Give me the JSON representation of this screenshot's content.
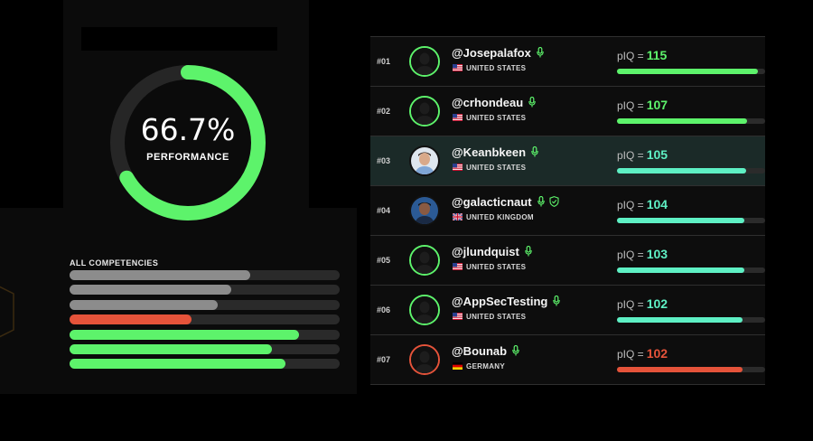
{
  "performance": {
    "value_text": "66.7%",
    "value_fraction": 0.667,
    "label": "PERFORMANCE",
    "ring_color": "#5df36b",
    "track_color": "#262626"
  },
  "competencies": {
    "title": "ALL COMPETENCIES",
    "bars": [
      {
        "level": 0.67,
        "color": "#8c8c8c"
      },
      {
        "level": 0.6,
        "color": "#8c8c8c"
      },
      {
        "level": 0.55,
        "color": "#8c8c8c"
      },
      {
        "level": 0.45,
        "color": "#e5533a"
      },
      {
        "level": 0.85,
        "color": "#5df36b"
      },
      {
        "level": 0.75,
        "color": "#5df36b"
      },
      {
        "level": 0.8,
        "color": "#5df36b"
      }
    ]
  },
  "leaderboard": {
    "piq_label": "pIQ =",
    "rows": [
      {
        "rank": "#01",
        "username": "@Josepalafox",
        "country": "UNITED STATES",
        "flag": "us",
        "piq": "115",
        "level": 0.95,
        "color": "#5df36b",
        "avatar": "silhouette",
        "ring": "#5df36b",
        "verified": false,
        "highlight": false
      },
      {
        "rank": "#02",
        "username": "@crhondeau",
        "country": "UNITED STATES",
        "flag": "us",
        "piq": "107",
        "level": 0.88,
        "color": "#5df36b",
        "avatar": "silhouette",
        "ring": "#5df36b",
        "verified": false,
        "highlight": false
      },
      {
        "rank": "#03",
        "username": "@Keanbkeen",
        "country": "UNITED STATES",
        "flag": "us",
        "piq": "105",
        "level": 0.87,
        "color": "#5ef0c4",
        "avatar": "photo-light",
        "ring": "#111111",
        "verified": false,
        "highlight": true
      },
      {
        "rank": "#04",
        "username": "@galacticnaut",
        "country": "UNITED KINGDOM",
        "flag": "uk",
        "piq": "104",
        "level": 0.86,
        "color": "#5ef0c4",
        "avatar": "photo-dark",
        "ring": "#111111",
        "verified": true,
        "highlight": false
      },
      {
        "rank": "#05",
        "username": "@jlundquist",
        "country": "UNITED STATES",
        "flag": "us",
        "piq": "103",
        "level": 0.86,
        "color": "#5ef0c4",
        "avatar": "silhouette",
        "ring": "#5df36b",
        "verified": false,
        "highlight": false
      },
      {
        "rank": "#06",
        "username": "@AppSecTesting",
        "country": "UNITED STATES",
        "flag": "us",
        "piq": "102",
        "level": 0.85,
        "color": "#5ef0c4",
        "avatar": "silhouette",
        "ring": "#5df36b",
        "verified": false,
        "highlight": false
      },
      {
        "rank": "#07",
        "username": "@Bounab",
        "country": "GERMANY",
        "flag": "de",
        "piq": "102",
        "level": 0.85,
        "color": "#e5533a",
        "avatar": "silhouette",
        "ring": "#e5533a",
        "verified": false,
        "highlight": false
      }
    ]
  }
}
